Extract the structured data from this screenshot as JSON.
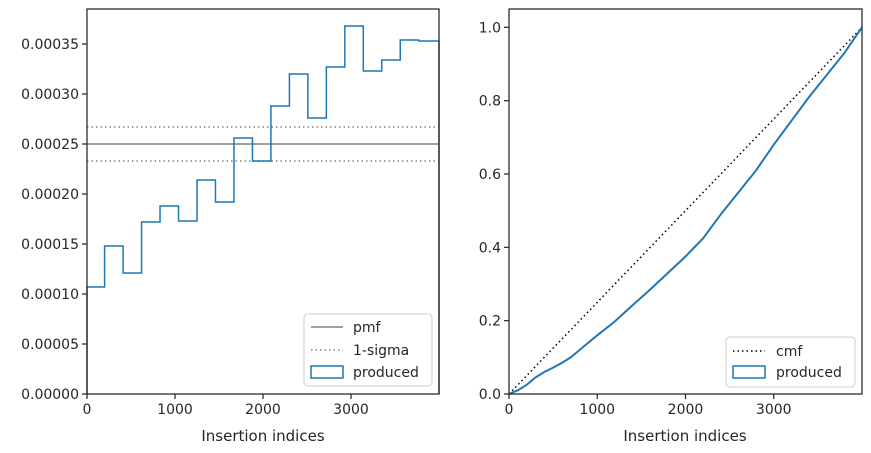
{
  "chart_data": [
    {
      "type": "histogram",
      "xlabel": "Insertion indices",
      "ylabel": "",
      "xlim": [
        0,
        4000
      ],
      "ylim": [
        0,
        0.000385
      ],
      "xticks": [
        0,
        1000,
        2000,
        3000
      ],
      "xtick_labels": [
        "0",
        "1000",
        "2000",
        "3000"
      ],
      "yticks": [
        0,
        5e-05,
        0.0001,
        0.00015,
        0.0002,
        0.00025,
        0.0003,
        0.00035
      ],
      "ytick_labels": [
        "0.00000",
        "0.00005",
        "0.00010",
        "0.00015",
        "0.00020",
        "0.00025",
        "0.00030",
        "0.00035"
      ],
      "grid": false,
      "legend_position": "lower right",
      "reference_lines": [
        {
          "name": "pmf",
          "y": 0.00025,
          "style": "solid",
          "color": "#808080"
        },
        {
          "name": "1-sigma",
          "y": [
            0.000233,
            0.000267
          ],
          "style": "dotted",
          "color": "#808080"
        }
      ],
      "series": [
        {
          "name": "produced",
          "color": "#1f77b4",
          "bin_edges": [
            0,
            200,
            410,
            620,
            830,
            1040,
            1250,
            1460,
            1670,
            1880,
            2090,
            2300,
            2510,
            2720,
            2930,
            3140,
            3350,
            3560,
            3770,
            4000
          ],
          "values": [
            0.000107,
            0.000148,
            0.000121,
            0.000172,
            0.000188,
            0.000173,
            0.000214,
            0.000192,
            0.000256,
            0.000233,
            0.000288,
            0.00032,
            0.000276,
            0.000327,
            0.000368,
            0.000323,
            0.000334,
            0.000354,
            0.000353
          ]
        }
      ],
      "legend": [
        {
          "label": "pmf",
          "style": "solid"
        },
        {
          "label": "1-sigma",
          "style": "dotted"
        },
        {
          "label": "produced",
          "style": "box"
        }
      ]
    },
    {
      "type": "line",
      "xlabel": "Insertion indices",
      "ylabel": "",
      "xlim": [
        0,
        4000
      ],
      "ylim": [
        0,
        1.05
      ],
      "xticks": [
        0,
        1000,
        2000,
        3000
      ],
      "xtick_labels": [
        "0",
        "1000",
        "2000",
        "3000"
      ],
      "yticks": [
        0,
        0.2,
        0.4,
        0.6,
        0.8,
        1.0
      ],
      "ytick_labels": [
        "0.0",
        "0.2",
        "0.4",
        "0.6",
        "0.8",
        "1.0"
      ],
      "grid": false,
      "legend_position": "lower right",
      "series": [
        {
          "name": "cmf",
          "style": "dotted",
          "color": "#000000",
          "x": [
            0,
            4000
          ],
          "y": [
            0,
            1.0
          ]
        },
        {
          "name": "produced",
          "style": "solid",
          "color": "#1f77b4",
          "x": [
            0,
            100,
            200,
            300,
            400,
            500,
            600,
            700,
            800,
            900,
            1000,
            1200,
            1400,
            1600,
            1800,
            2000,
            2200,
            2400,
            2600,
            2800,
            3000,
            3200,
            3400,
            3600,
            3800,
            4000
          ],
          "y": [
            0,
            0.01,
            0.025,
            0.045,
            0.06,
            0.072,
            0.085,
            0.1,
            0.12,
            0.14,
            0.16,
            0.198,
            0.242,
            0.285,
            0.33,
            0.375,
            0.425,
            0.49,
            0.55,
            0.61,
            0.68,
            0.745,
            0.81,
            0.87,
            0.93,
            1.0
          ]
        }
      ],
      "legend": [
        {
          "label": "cmf",
          "style": "dotted"
        },
        {
          "label": "produced",
          "style": "box"
        }
      ]
    }
  ]
}
